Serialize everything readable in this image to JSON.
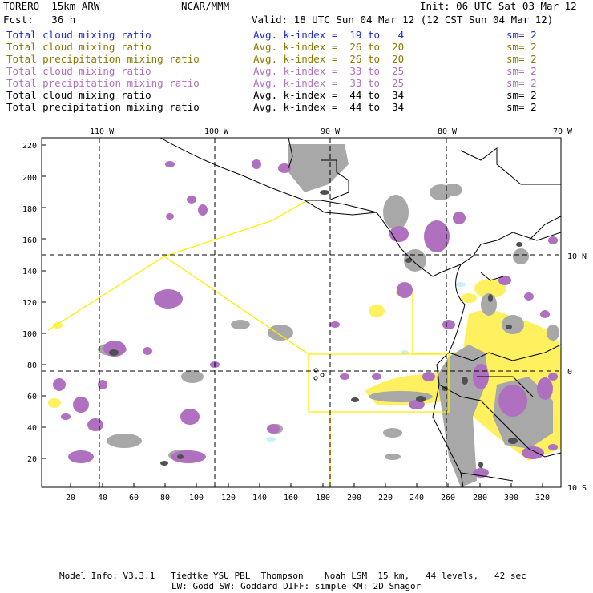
{
  "header": {
    "model": "TORERO  15km ARW",
    "org": "NCAR/MMM",
    "init": "Init: 06 UTC Sat 03 Mar 12",
    "fcst": "Fcst:   36 h",
    "valid": "Valid: 18 UTC Sun 04 Mar 12 (12 CST Sun 04 Mar 12)"
  },
  "legend": [
    {
      "field": "Total cloud mixing ratio",
      "kindex": "Avg. k-index =  19 to   4",
      "sm": "sm= 2",
      "color": "#1f2ad6"
    },
    {
      "field": "Total cloud mixing ratio",
      "kindex": "Avg. k-index =  26 to  20",
      "sm": "sm= 2",
      "color": "#8a7a00"
    },
    {
      "field": "Total precipitation mixing ratio",
      "kindex": "Avg. k-index =  26 to  20",
      "sm": "sm= 2",
      "color": "#8a7a00"
    },
    {
      "field": "Total cloud mixing ratio",
      "kindex": "Avg. k-index =  33 to  25",
      "sm": "sm= 2",
      "color": "#b070c0"
    },
    {
      "field": "Total precipitation mixing ratio",
      "kindex": "Avg. k-index =  33 to  25",
      "sm": "sm= 2",
      "color": "#b070c0"
    },
    {
      "field": "Total cloud mixing ratio",
      "kindex": "Avg. k-index =  44 to  34",
      "sm": "sm= 2",
      "color": "#000000"
    },
    {
      "field": "Total precipitation mixing ratio",
      "kindex": "Avg. k-index =  44 to  34",
      "sm": "sm= 2",
      "color": "#000000"
    }
  ],
  "map": {
    "lon_labels": [
      "110 W",
      "100 W",
      "90 W",
      "80 W",
      "70 W"
    ],
    "lat_labels": [
      "10 N",
      "0",
      "10 S"
    ],
    "y_ticks": [
      "220",
      "200",
      "180",
      "160",
      "140",
      "120",
      "100",
      "80",
      "60",
      "40",
      "20"
    ],
    "x_ticks": [
      "20",
      "40",
      "60",
      "80",
      "100",
      "120",
      "140",
      "160",
      "180",
      "200",
      "220",
      "240",
      "260",
      "280",
      "300",
      "320"
    ],
    "colors": {
      "gray": "#a8a8a8",
      "dark": "#505050",
      "purple": "#b070c0",
      "yellow": "#fff060",
      "cyan": "#c8f0f8",
      "outline": "#ffee00"
    }
  },
  "footer": {
    "line1": "Model Info: V3.3.1   Tiedtke YSU PBL  Thompson    Noah LSM  15 km,   44 levels,   42 sec",
    "line2": "LW: Godd SW: Goddard DIFF: simple KM: 2D Smagor"
  }
}
